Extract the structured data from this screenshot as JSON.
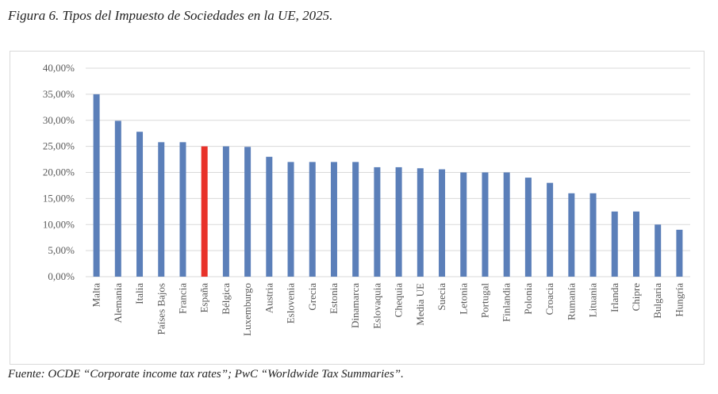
{
  "chart_data": {
    "type": "bar",
    "title": "Figura 6. Tipos del Impuesto de Sociedades en la UE, 2025.",
    "source": "Fuente: OCDE “Corporate income tax rates”; PwC “Worldwide Tax Summaries”.",
    "xlabel": "",
    "ylabel": "",
    "ylim": [
      0,
      40
    ],
    "yticks": [
      "0,00%",
      "5,00%",
      "10,00%",
      "15,00%",
      "20,00%",
      "25,00%",
      "30,00%",
      "35,00%",
      "40,00%"
    ],
    "grid": true,
    "categories": [
      "Malta",
      "Alemania",
      "Italia",
      "Países Bajos",
      "Francia",
      "España",
      "Bélgica",
      "Luxemburgo",
      "Austria",
      "Eslovenia",
      "Grecia",
      "Estonia",
      "Dinamarca",
      "Eslovaquia",
      "Chequia",
      "Media UE",
      "Suecia",
      "Letonia",
      "Portugal",
      "Finlandia",
      "Polonia",
      "Croacia",
      "Rumanía",
      "Lituania",
      "Irlanda",
      "Chipre",
      "Bulgaria",
      "Hungría"
    ],
    "values": [
      35,
      29.9,
      27.8,
      25.8,
      25.8,
      25,
      25,
      24.9,
      23,
      22,
      22,
      22,
      22,
      21,
      21,
      20.8,
      20.6,
      20,
      20,
      20,
      19,
      18,
      16,
      16,
      12.5,
      12.5,
      10,
      9
    ],
    "bar_color": "#5b7fb9",
    "highlight": {
      "category": "España",
      "color": "#e8322a"
    }
  }
}
